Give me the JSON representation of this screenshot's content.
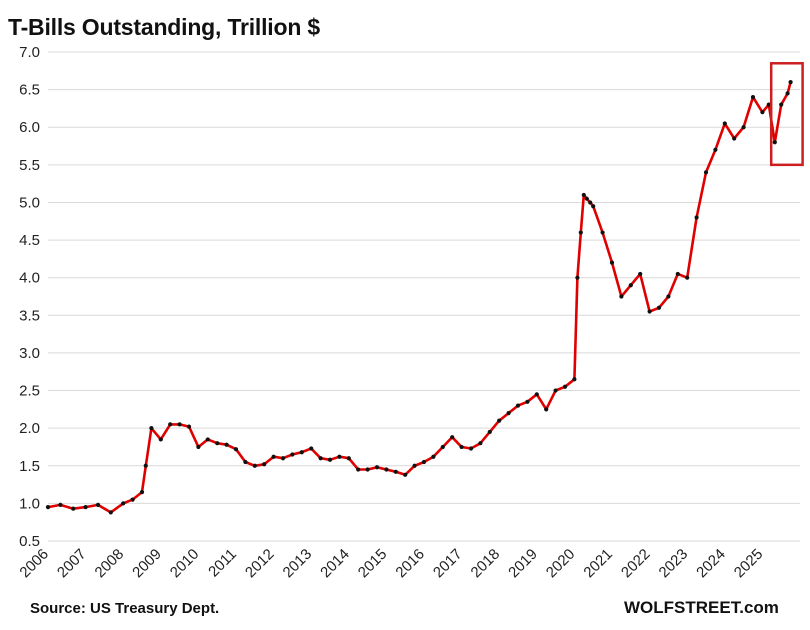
{
  "chart_data": {
    "type": "line",
    "title": "T-Bills Outstanding, Trillion $",
    "xlabel": "",
    "ylabel": "",
    "ylim": [
      0.5,
      7.0
    ],
    "xlim": [
      2006,
      2026
    ],
    "yticks": [
      "0.5",
      "1.0",
      "1.5",
      "2.0",
      "2.5",
      "3.0",
      "3.5",
      "4.0",
      "4.5",
      "5.0",
      "5.5",
      "6.0",
      "6.5",
      "7.0"
    ],
    "xticks": [
      "2006",
      "2007",
      "2008",
      "2009",
      "2010",
      "2011",
      "2012",
      "2013",
      "2014",
      "2015",
      "2016",
      "2017",
      "2018",
      "2019",
      "2020",
      "2021",
      "2022",
      "2023",
      "2024",
      "2025"
    ],
    "grid": true,
    "colors": {
      "line": "#e00000",
      "markers": "#111111",
      "highlight_box": "#cc1f1f",
      "grid": "#d9d9d9"
    },
    "series": [
      {
        "x": [
          2006.0,
          2006.33,
          2006.67,
          2007.0,
          2007.33,
          2007.67,
          2008.0,
          2008.25,
          2008.5,
          2008.6,
          2008.75,
          2009.0,
          2009.25,
          2009.5,
          2009.75,
          2010.0,
          2010.25,
          2010.5,
          2010.75,
          2011.0,
          2011.25,
          2011.5,
          2011.75,
          2012.0,
          2012.25,
          2012.5,
          2012.75,
          2013.0,
          2013.25,
          2013.5,
          2013.75,
          2014.0,
          2014.25,
          2014.5,
          2014.75,
          2015.0,
          2015.25,
          2015.5,
          2015.75,
          2016.0,
          2016.25,
          2016.5,
          2016.75,
          2017.0,
          2017.25,
          2017.5,
          2017.75,
          2018.0,
          2018.25,
          2018.5,
          2018.75,
          2019.0,
          2019.25,
          2019.5,
          2019.75,
          2020.0,
          2020.08,
          2020.17,
          2020.25,
          2020.33,
          2020.42,
          2020.5,
          2020.75,
          2021.0,
          2021.25,
          2021.5,
          2021.75,
          2022.0,
          2022.25,
          2022.5,
          2022.75,
          2023.0,
          2023.25,
          2023.5,
          2023.75,
          2024.0,
          2024.25,
          2024.5,
          2024.75,
          2025.0,
          2025.17,
          2025.33,
          2025.5,
          2025.67,
          2025.75
        ],
        "y": [
          0.95,
          0.98,
          0.93,
          0.95,
          0.98,
          0.88,
          1.0,
          1.05,
          1.15,
          1.5,
          2.0,
          1.85,
          2.05,
          2.05,
          2.02,
          1.75,
          1.85,
          1.8,
          1.78,
          1.72,
          1.55,
          1.5,
          1.52,
          1.62,
          1.6,
          1.65,
          1.68,
          1.73,
          1.6,
          1.58,
          1.62,
          1.6,
          1.45,
          1.45,
          1.48,
          1.45,
          1.42,
          1.38,
          1.5,
          1.55,
          1.62,
          1.75,
          1.88,
          1.75,
          1.73,
          1.8,
          1.95,
          2.1,
          2.2,
          2.3,
          2.35,
          2.45,
          2.25,
          2.5,
          2.55,
          2.65,
          4.0,
          4.6,
          5.1,
          5.05,
          5.0,
          4.95,
          4.6,
          4.2,
          3.75,
          3.9,
          4.05,
          3.55,
          3.6,
          3.75,
          4.05,
          4.0,
          4.8,
          5.4,
          5.7,
          6.05,
          5.85,
          6.0,
          6.4,
          6.2,
          6.3,
          5.8,
          6.3,
          6.45,
          6.6
        ]
      }
    ]
  },
  "footer": {
    "source": "Source: US Treasury Dept.",
    "brand": "WOLFSTREET.com"
  }
}
